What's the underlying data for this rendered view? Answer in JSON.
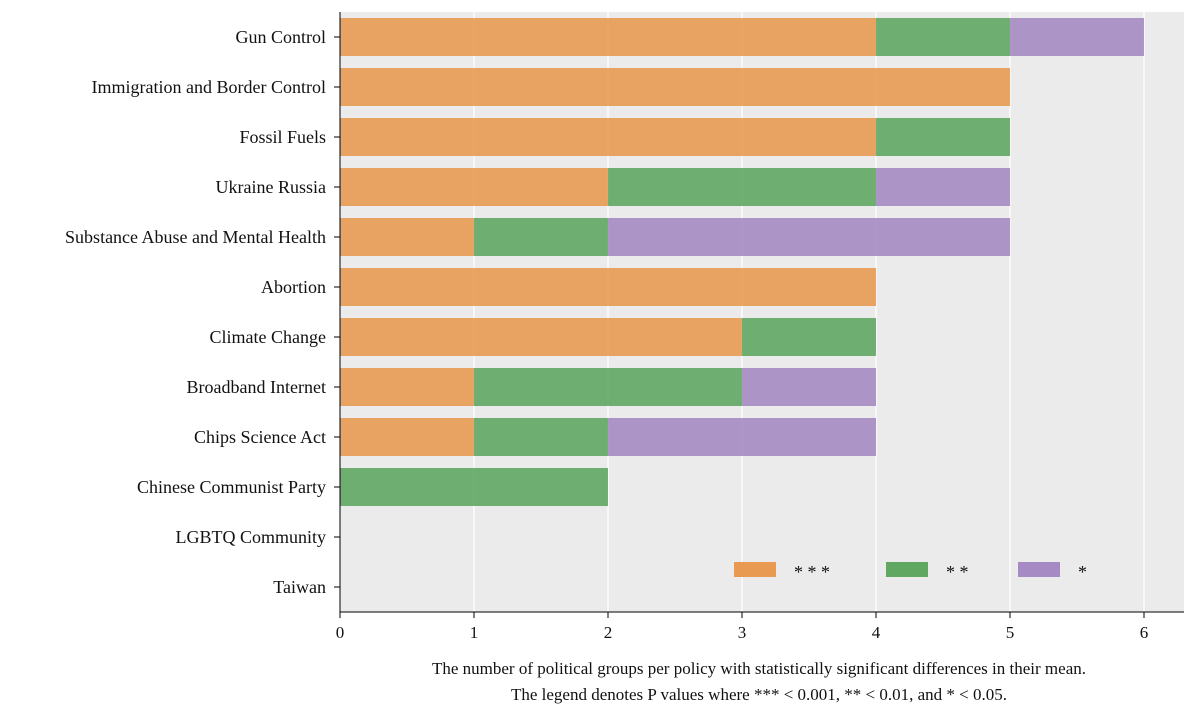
{
  "chart_data": {
    "type": "bar",
    "orientation": "horizontal",
    "stacked": true,
    "categories": [
      "Gun Control",
      "Immigration and Border Control",
      "Fossil Fuels",
      "Ukraine Russia",
      "Substance Abuse and Mental Health",
      "Abortion",
      "Climate Change",
      "Broadband Internet",
      "Chips Science Act",
      "Chinese Communist Party",
      "LGBTQ Community",
      "Taiwan"
    ],
    "series": [
      {
        "name": "* * *",
        "color": "#e8954a",
        "values": [
          4,
          5,
          4,
          2,
          1,
          4,
          3,
          1,
          1,
          0,
          0,
          0
        ]
      },
      {
        "name": "* *",
        "color": "#58a35a",
        "values": [
          1,
          0,
          1,
          2,
          1,
          0,
          1,
          2,
          1,
          2,
          0,
          0
        ]
      },
      {
        "name": "*",
        "color": "#a185c1",
        "values": [
          1,
          0,
          0,
          1,
          3,
          0,
          0,
          1,
          2,
          0,
          0,
          0
        ]
      }
    ],
    "xlim": [
      0,
      6.3
    ],
    "xticks": [
      0,
      1,
      2,
      3,
      4,
      5,
      6
    ],
    "xlabel_lines": [
      "The number of political groups per policy with statistically significant differences in their mean.",
      "The legend denotes P values where *** < 0.001, ** < 0.01, and * < 0.05."
    ],
    "grid": "vertical",
    "background": "#ebebeb",
    "legend_position": "lower-right"
  }
}
